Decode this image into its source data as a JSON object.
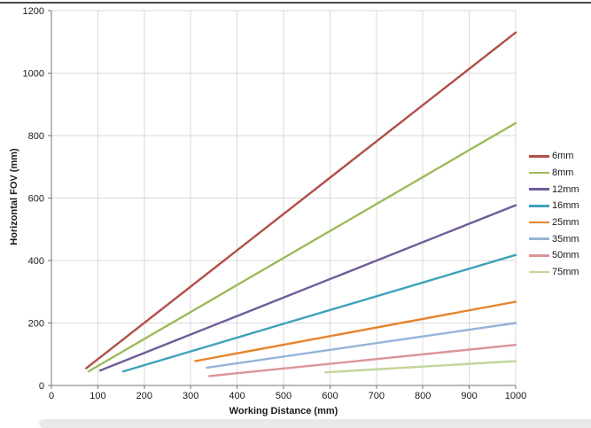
{
  "window": {
    "top_bar_color": "#474747",
    "scrollbar_color": "#E9E9E9",
    "background": "#FFFFFF"
  },
  "chart_data": {
    "type": "line",
    "title": "",
    "xlabel": "Working Distance (mm)",
    "ylabel": "Horizontal FOV (mm)",
    "xlim": [
      0,
      1000
    ],
    "ylim": [
      0,
      1200
    ],
    "x_ticks": [
      0,
      100,
      200,
      300,
      400,
      500,
      600,
      700,
      800,
      900,
      1000
    ],
    "y_ticks": [
      0,
      200,
      400,
      600,
      800,
      1000,
      1200
    ],
    "grid": true,
    "legend_position": "right",
    "colors": {
      "axis": "#767676",
      "grid": "#D9D9D9",
      "tick_label": "#1A1A1A",
      "plot_background": "#FFFFFF"
    },
    "series": [
      {
        "name": "6mm",
        "color": "#B0504A",
        "points": [
          [
            75,
            55
          ],
          [
            1000,
            1130
          ]
        ]
      },
      {
        "name": "8mm",
        "color": "#9BBB59",
        "points": [
          [
            80,
            45
          ],
          [
            1000,
            840
          ]
        ]
      },
      {
        "name": "12mm",
        "color": "#6F5C99",
        "points": [
          [
            105,
            48
          ],
          [
            1000,
            577
          ]
        ]
      },
      {
        "name": "16mm",
        "color": "#3EA2BC",
        "points": [
          [
            155,
            45
          ],
          [
            1000,
            418
          ]
        ]
      },
      {
        "name": "25mm",
        "color": "#E7842C",
        "points": [
          [
            310,
            78
          ],
          [
            1000,
            268
          ]
        ]
      },
      {
        "name": "35mm",
        "color": "#95B3D7",
        "points": [
          [
            335,
            57
          ],
          [
            1000,
            200
          ]
        ]
      },
      {
        "name": "50mm",
        "color": "#D99694",
        "points": [
          [
            340,
            30
          ],
          [
            1000,
            130
          ]
        ]
      },
      {
        "name": "75mm",
        "color": "#C3D69B",
        "points": [
          [
            590,
            42
          ],
          [
            1000,
            78
          ]
        ]
      }
    ]
  }
}
